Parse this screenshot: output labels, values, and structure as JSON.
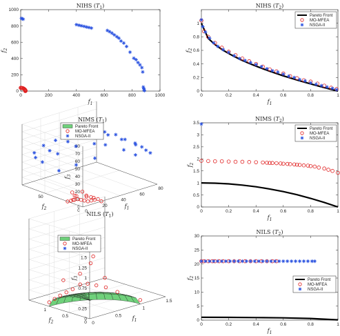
{
  "colors": {
    "front": "#000000",
    "mfea": "#e02020",
    "nsga": "#2a52e0",
    "surface": "#6fd17b"
  },
  "chart_data": [
    {
      "type": "scatter",
      "title": "NIHS (T1)",
      "xlabel": "f1",
      "ylabel": "f2",
      "xlim": [
        0,
        1000
      ],
      "ylim": [
        0,
        1000
      ],
      "xticks": [
        "0",
        "200",
        "400",
        "600",
        "800",
        "1000"
      ],
      "yticks": [
        "0",
        "200",
        "400",
        "600",
        "800",
        "1000"
      ],
      "legend": null,
      "series": [
        {
          "name": "MO-MFEA",
          "kind": "circle",
          "x": [
            0,
            3,
            7,
            11,
            15,
            19,
            23,
            26,
            29,
            31,
            33,
            34,
            35,
            35,
            34,
            33
          ],
          "y": [
            40,
            40,
            39,
            38,
            36,
            33,
            29,
            25,
            20,
            16,
            12,
            8,
            5,
            2,
            1,
            0
          ]
        },
        {
          "name": "NSGA-II",
          "kind": "star",
          "x": [
            5,
            12,
            18,
            400,
            418,
            436,
            455,
            472,
            490,
            508,
            622,
            638,
            655,
            672,
            690,
            705,
            720,
            740,
            760,
            785,
            812,
            828,
            842,
            856,
            870,
            876,
            880,
            884,
            886,
            888
          ],
          "y": [
            893,
            888,
            883,
            816,
            808,
            802,
            795,
            787,
            781,
            774,
            745,
            730,
            712,
            690,
            668,
            650,
            615,
            590,
            548,
            478,
            404,
            385,
            350,
            322,
            288,
            235,
            50,
            30,
            15,
            5
          ]
        }
      ]
    },
    {
      "type": "line",
      "title": "NIHS (T2)",
      "xlabel": "f1",
      "ylabel": "f2",
      "xlim": [
        0,
        1
      ],
      "ylim": [
        0,
        1.2
      ],
      "xticks": [
        "0",
        "0.2",
        "0.4",
        "0.6",
        "0.8",
        "1"
      ],
      "yticks": [
        "0",
        "0.2",
        "0.4",
        "0.6",
        "0.8",
        "1"
      ],
      "legend": "top-right",
      "series": [
        {
          "name": "Pareto Front",
          "kind": "line",
          "x": [
            0,
            0.05,
            0.1,
            0.15,
            0.2,
            0.25,
            0.3,
            0.35,
            0.4,
            0.45,
            0.5,
            0.55,
            0.6,
            0.65,
            0.7,
            0.75,
            0.8,
            0.85,
            0.9,
            0.95,
            1
          ],
          "y": [
            1,
            0.776,
            0.684,
            0.613,
            0.553,
            0.5,
            0.452,
            0.408,
            0.368,
            0.329,
            0.293,
            0.258,
            0.225,
            0.194,
            0.163,
            0.134,
            0.106,
            0.078,
            0.051,
            0.025,
            0
          ]
        },
        {
          "name": "MO-MFEA",
          "kind": "circle",
          "x": [
            0,
            0.02,
            0.05,
            0.1,
            0.15,
            0.2,
            0.25,
            0.3,
            0.35,
            0.4,
            0.45,
            0.5,
            0.55,
            0.6,
            0.65,
            0.7,
            0.75,
            0.8,
            0.85,
            0.9,
            0.95,
            0.99
          ],
          "y": [
            1.04,
            0.88,
            0.8,
            0.71,
            0.64,
            0.58,
            0.53,
            0.48,
            0.44,
            0.4,
            0.36,
            0.32,
            0.29,
            0.26,
            0.22,
            0.19,
            0.16,
            0.14,
            0.11,
            0.08,
            0.05,
            0.03
          ]
        },
        {
          "name": "NSGA-II",
          "kind": "star",
          "x": [
            0,
            0.01,
            0.03,
            0.06,
            0.09,
            0.12,
            0.16,
            0.2,
            0.24,
            0.28,
            0.32,
            0.36,
            0.4,
            0.44,
            0.48,
            0.52,
            0.56,
            0.6,
            0.64,
            0.68,
            0.72,
            0.76,
            0.8,
            0.84,
            0.88,
            0.92,
            0.96,
            0.99
          ],
          "y": [
            1.05,
            0.95,
            0.87,
            0.78,
            0.71,
            0.66,
            0.61,
            0.57,
            0.52,
            0.48,
            0.45,
            0.42,
            0.39,
            0.36,
            0.33,
            0.3,
            0.28,
            0.25,
            0.22,
            0.2,
            0.17,
            0.15,
            0.12,
            0.1,
            0.08,
            0.06,
            0.04,
            0.02
          ]
        }
      ]
    },
    {
      "type": "scatter3d",
      "title": "NIMS (T1)",
      "xlabel": "f1",
      "ylabel": "f2",
      "zlabel": "f3",
      "xlim": [
        0,
        80
      ],
      "ylim": [
        0,
        80
      ],
      "zlim": [
        0,
        80
      ],
      "xticks": [
        "0",
        "20",
        "40",
        "60",
        "80"
      ],
      "yticks": [
        "0",
        "50"
      ],
      "zticks": [
        "0",
        "10",
        "20",
        "30",
        "40",
        "50",
        "60",
        "70",
        "80"
      ],
      "legend": "top",
      "series": [
        {
          "name": "Pareto Front",
          "kind": "surface",
          "x": [],
          "y": [],
          "z": []
        },
        {
          "name": "MO-MFEA",
          "kind": "circle",
          "x": [
            0,
            2,
            4,
            6,
            8,
            10,
            12,
            14,
            16,
            18,
            20,
            6,
            12,
            3,
            9,
            15,
            1,
            5,
            11,
            17
          ],
          "y": [
            20,
            18,
            16,
            14,
            12,
            10,
            8,
            6,
            4,
            2,
            0,
            18,
            10,
            12,
            6,
            4,
            14,
            20,
            14,
            10
          ],
          "z": [
            0,
            1,
            2,
            3,
            2,
            1,
            0,
            1,
            2,
            3,
            0,
            6,
            7,
            9,
            8,
            5,
            4,
            10,
            11,
            3
          ]
        },
        {
          "name": "NSGA-II",
          "kind": "star",
          "x": [
            5,
            10,
            18,
            25,
            30,
            40,
            48,
            55,
            60,
            66,
            70,
            72,
            75,
            12,
            22,
            35,
            45,
            52,
            62,
            68,
            8,
            15,
            28,
            38,
            50,
            58,
            65,
            20,
            32,
            44
          ],
          "y": [
            70,
            64,
            58,
            50,
            44,
            36,
            30,
            24,
            18,
            12,
            8,
            5,
            3,
            68,
            60,
            52,
            40,
            34,
            22,
            14,
            72,
            62,
            54,
            46,
            28,
            20,
            10,
            56,
            48,
            38
          ],
          "z": [
            44,
            54,
            60,
            66,
            70,
            72,
            70,
            66,
            60,
            55,
            50,
            46,
            42,
            30,
            40,
            48,
            52,
            50,
            44,
            38,
            36,
            46,
            56,
            62,
            66,
            60,
            54,
            20,
            26,
            34
          ]
        }
      ]
    },
    {
      "type": "scatter",
      "title": "NIMS (T2)",
      "xlabel": "f1",
      "ylabel": "f2",
      "xlim": [
        0,
        1
      ],
      "ylim": [
        0,
        3.5
      ],
      "xticks": [
        "0",
        "0.2",
        "0.4",
        "0.6",
        "0.8",
        "1"
      ],
      "yticks": [
        "0",
        "0.5",
        "1",
        "1.5",
        "2",
        "2.5",
        "3",
        "3.5"
      ],
      "legend": "top-right",
      "series": [
        {
          "name": "Pareto Front",
          "kind": "line",
          "x": [
            0,
            0.1,
            0.2,
            0.3,
            0.4,
            0.5,
            0.6,
            0.7,
            0.8,
            0.9,
            1
          ],
          "y": [
            1,
            0.99,
            0.96,
            0.91,
            0.84,
            0.75,
            0.64,
            0.51,
            0.36,
            0.19,
            0
          ]
        },
        {
          "name": "MO-MFEA",
          "kind": "circle",
          "x": [
            0,
            0.05,
            0.1,
            0.15,
            0.2,
            0.25,
            0.3,
            0.35,
            0.4,
            0.45,
            0.48,
            0.5,
            0.52,
            0.55,
            0.58,
            0.6,
            0.63,
            0.65,
            0.68,
            0.7,
            0.72,
            0.75,
            0.78,
            0.8,
            0.83,
            0.86,
            0.9,
            0.93,
            0.96,
            1
          ],
          "y": [
            1.92,
            1.91,
            1.9,
            1.9,
            1.89,
            1.88,
            1.88,
            1.87,
            1.86,
            1.85,
            1.84,
            1.83,
            1.83,
            1.82,
            1.81,
            1.8,
            1.79,
            1.78,
            1.77,
            1.76,
            1.75,
            1.73,
            1.72,
            1.7,
            1.68,
            1.64,
            1.6,
            1.55,
            1.5,
            1.42
          ]
        },
        {
          "name": "NSGA-II",
          "kind": "star",
          "x": [
            0
          ],
          "y": [
            3.45
          ]
        }
      ]
    },
    {
      "type": "scatter3d",
      "title": "NILS (T1)",
      "xlabel": "f1",
      "ylabel": "f2",
      "zlabel": "f3",
      "xlim": [
        0,
        1.5
      ],
      "ylim": [
        0,
        1.5
      ],
      "zlim": [
        0,
        2
      ],
      "xticks": [
        "0",
        "0.5",
        "1",
        "1.5"
      ],
      "yticks": [
        "0",
        "0.5",
        "1"
      ],
      "zticks": [
        "0",
        "0.25",
        "0.5",
        "0.75",
        "1",
        "1.25",
        "1.5",
        "1.75",
        "2"
      ],
      "legend": "top",
      "series": [
        {
          "name": "Pareto Front",
          "kind": "surface",
          "x": [],
          "y": [],
          "z": []
        },
        {
          "name": "MO-MFEA",
          "kind": "circle",
          "x": [
            0.0,
            0.2,
            0.4,
            0.6,
            0.8,
            1.0,
            0.1,
            0.3,
            0.5,
            0.7,
            0.9,
            0.2,
            0.45,
            0.7,
            0.5,
            0.55,
            0.6
          ],
          "y": [
            1.0,
            0.98,
            0.92,
            0.8,
            0.6,
            0.0,
            0.99,
            0.95,
            0.86,
            0.71,
            0.44,
            0.9,
            0.8,
            0.5,
            0.6,
            0.6,
            0.6
          ],
          "z": [
            0.1,
            0.2,
            0.3,
            0.4,
            0.3,
            0.1,
            0.15,
            0.25,
            0.4,
            0.35,
            0.2,
            0.6,
            0.7,
            0.6,
            1.0,
            1.15,
            1.3
          ]
        },
        {
          "name": "NSGA-II",
          "kind": "star",
          "x": [],
          "y": [],
          "z": []
        }
      ]
    },
    {
      "type": "scatter",
      "title": "NILS (T2)",
      "xlabel": "f1",
      "ylabel": "f2",
      "xlim": [
        0,
        1
      ],
      "ylim": [
        0,
        30
      ],
      "xticks": [
        "0",
        "0.2",
        "0.4",
        "0.6",
        "0.8",
        "1"
      ],
      "yticks": [
        "0",
        "5",
        "10",
        "15",
        "20",
        "25",
        "30"
      ],
      "legend": "right",
      "series": [
        {
          "name": "Pareto Front",
          "kind": "line",
          "x": [
            0,
            0.2,
            0.4,
            0.6,
            0.8,
            1
          ],
          "y": [
            1,
            0.98,
            0.92,
            0.8,
            0.6,
            0.1
          ]
        },
        {
          "name": "MO-MFEA",
          "kind": "circle",
          "x": [
            0.0,
            0.02,
            0.05,
            0.08,
            0.1,
            0.13,
            0.16,
            0.2,
            0.24,
            0.28,
            0.32,
            0.36,
            0.4,
            0.44,
            0.48,
            0.52,
            0.55
          ],
          "y": [
            21,
            21,
            21,
            21,
            21,
            21,
            21,
            21,
            21,
            21,
            21,
            21,
            21,
            21,
            21,
            21,
            21
          ]
        },
        {
          "name": "NSGA-II",
          "kind": "star",
          "x": [
            0,
            0.03,
            0.06,
            0.09,
            0.12,
            0.15,
            0.18,
            0.21,
            0.24,
            0.27,
            0.3,
            0.33,
            0.36,
            0.39,
            0.42,
            0.45,
            0.48,
            0.51,
            0.54,
            0.57,
            0.6,
            0.63,
            0.66,
            0.69,
            0.72,
            0.75,
            0.78,
            0.81,
            0.83
          ],
          "y": [
            21,
            21,
            21,
            21,
            21,
            21,
            21,
            21,
            21,
            21,
            21,
            21,
            21,
            21,
            21,
            21,
            21,
            21,
            21,
            21,
            21,
            21,
            21,
            21,
            21,
            21,
            21,
            21,
            21
          ]
        }
      ]
    }
  ]
}
